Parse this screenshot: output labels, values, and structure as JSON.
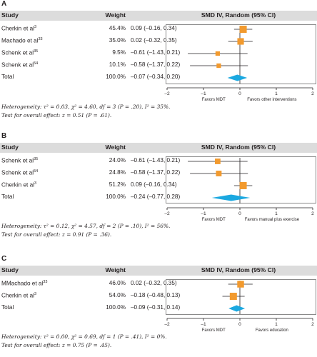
{
  "columns": {
    "study": "Study",
    "weight": "Weight",
    "effect": "SMD IV, Random (95% CI)"
  },
  "colors": {
    "box": "#f29a2e",
    "diamond": "#1ba8e0",
    "header_bg": "#dcdcdc",
    "line": "#231f20"
  },
  "panels": [
    {
      "label": "A",
      "rows": [
        {
          "name": "Cherkin et al",
          "ref": "3",
          "weight": "45.4%",
          "ci_text": "0.09 (–0.16, 0.34)"
        },
        {
          "name": "Machado et al",
          "ref": "33",
          "weight": "35.0%",
          "ci_text": "0.02 (–0.32, 0.35)"
        },
        {
          "name": "Schenk et al",
          "ref": "35",
          "weight": "9.5%",
          "ci_text": "–0.61 (–1.43, 0.21)"
        },
        {
          "name": "Schenk et al",
          "ref": "54",
          "weight": "10.1%",
          "ci_text": "–0.58 (–1.37, 0.22)"
        },
        {
          "name": "Total",
          "ref": "",
          "weight": "100.0%",
          "ci_text": "–0.07 (–0.34, 0.20)"
        }
      ],
      "favors_left": "Favors MDT",
      "favors_right": "Favors other interventions",
      "heterogeneity": "Heterogeneity: τ² = 0.03, χ² = 4.60, df = 3 (P = .20), I² = 35%.",
      "overall": "Test for overall effect: z = 0.51 (P = .61)."
    },
    {
      "label": "B",
      "rows": [
        {
          "name": "Schenk et al",
          "ref": "35",
          "weight": "24.0%",
          "ci_text": "–0.61 (–1.43, 0.21)"
        },
        {
          "name": "Schenk et al",
          "ref": "54",
          "weight": "24.8%",
          "ci_text": "–0.58 (–1.37, 0.22)"
        },
        {
          "name": "Cherkin et al",
          "ref": "3",
          "weight": "51.2%",
          "ci_text": "0.09 (–0.16, 0.34)"
        },
        {
          "name": "Total",
          "ref": "",
          "weight": "100.0%",
          "ci_text": "–0.24 (–0.77, 0.28)"
        }
      ],
      "favors_left": "Favors MDT",
      "favors_right": "Favors manual plus exercise",
      "heterogeneity": "Heterogeneity: τ² = 0.12, χ² = 4.57, df = 2 (P = .10), I² = 56%.",
      "overall": "Test for overall effect: z = 0.91 (P = .36)."
    },
    {
      "label": "C",
      "rows": [
        {
          "name": "MMachado et al",
          "ref": "33",
          "weight": "46.0%",
          "ci_text": "0.02 (–0.32, 0.35)"
        },
        {
          "name": "Cherkin et al",
          "ref": "3",
          "weight": "54.0%",
          "ci_text": "–0.18 (–0.48, 0.13)"
        },
        {
          "name": "Total",
          "ref": "",
          "weight": "100.0%",
          "ci_text": "–0.09 (–0.31, 0.14)"
        }
      ],
      "favors_left": "Favors MDT",
      "favors_right": "Favors education",
      "heterogeneity": "Heterogeneity: τ² = 0.00, χ² = 0.69, df = 1 (P = .41), I² = 0%.",
      "overall": "Test for overall effect: z = 0.75 (P = .45)."
    }
  ],
  "chart_data": [
    {
      "type": "forest",
      "panel": "A",
      "xlim": [
        -2,
        2
      ],
      "xticks": [
        -2,
        -1,
        0,
        1,
        2
      ],
      "studies": [
        {
          "study": "Cherkin et al",
          "weight": 45.4,
          "estimate": 0.09,
          "lower": -0.16,
          "upper": 0.34
        },
        {
          "study": "Machado et al",
          "weight": 35.0,
          "estimate": 0.02,
          "lower": -0.32,
          "upper": 0.35
        },
        {
          "study": "Schenk et al",
          "weight": 9.5,
          "estimate": -0.61,
          "lower": -1.43,
          "upper": 0.21
        },
        {
          "study": "Schenk et al",
          "weight": 10.1,
          "estimate": -0.58,
          "lower": -1.37,
          "upper": 0.22
        }
      ],
      "total": {
        "weight": 100.0,
        "estimate": -0.07,
        "lower": -0.34,
        "upper": 0.2
      }
    },
    {
      "type": "forest",
      "panel": "B",
      "xlim": [
        -2,
        2
      ],
      "xticks": [
        -2,
        -1,
        0,
        1,
        2
      ],
      "studies": [
        {
          "study": "Schenk et al",
          "weight": 24.0,
          "estimate": -0.61,
          "lower": -1.43,
          "upper": 0.21
        },
        {
          "study": "Schenk et al",
          "weight": 24.8,
          "estimate": -0.58,
          "lower": -1.37,
          "upper": 0.22
        },
        {
          "study": "Cherkin et al",
          "weight": 51.2,
          "estimate": 0.09,
          "lower": -0.16,
          "upper": 0.34
        }
      ],
      "total": {
        "weight": 100.0,
        "estimate": -0.24,
        "lower": -0.77,
        "upper": 0.28
      }
    },
    {
      "type": "forest",
      "panel": "C",
      "xlim": [
        -2,
        2
      ],
      "xticks": [
        -2,
        -1,
        0,
        1,
        2
      ],
      "studies": [
        {
          "study": "MMachado et al",
          "weight": 46.0,
          "estimate": 0.02,
          "lower": -0.32,
          "upper": 0.35
        },
        {
          "study": "Cherkin et al",
          "weight": 54.0,
          "estimate": -0.18,
          "lower": -0.48,
          "upper": 0.13
        }
      ],
      "total": {
        "weight": 100.0,
        "estimate": -0.09,
        "lower": -0.31,
        "upper": 0.14
      }
    }
  ]
}
